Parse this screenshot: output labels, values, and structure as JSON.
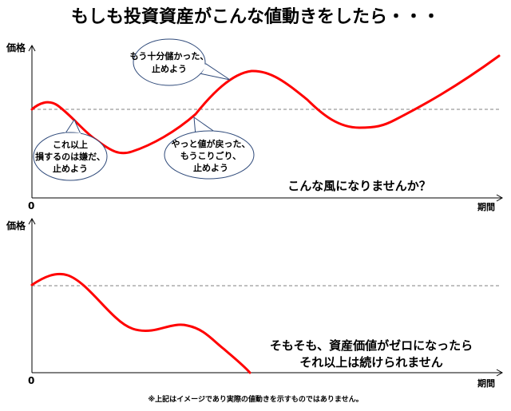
{
  "title": "もしも投資資産がこんな値動きをしたら・・・",
  "colors": {
    "curve": "#ff0000",
    "bubble_border": "#2f4a7a",
    "reference_line": "#808080"
  },
  "top_chart": {
    "y_label": "価格",
    "x_label": "期間",
    "origin_label": "0",
    "bubbles": [
      {
        "line1": "もう十分儲かった、",
        "line2": "止めよう"
      },
      {
        "line1": "これ以上",
        "line2": "損するのは嫌だ、",
        "line3": "止めよう"
      },
      {
        "line1": "やっと値が戻った、",
        "line2": "もうこりごり、",
        "line3": "止めよう"
      }
    ],
    "caption": "こんな風になりませんか？"
  },
  "bottom_chart": {
    "y_label": "価格",
    "x_label": "期間",
    "origin_label": "0",
    "caption_line1": "そもそも、資産価値がゼロになったら",
    "caption_line2": "それ以上は続けられません"
  },
  "footnote": "※上記はイメージであり実際の値動きを示すものではありません。"
}
